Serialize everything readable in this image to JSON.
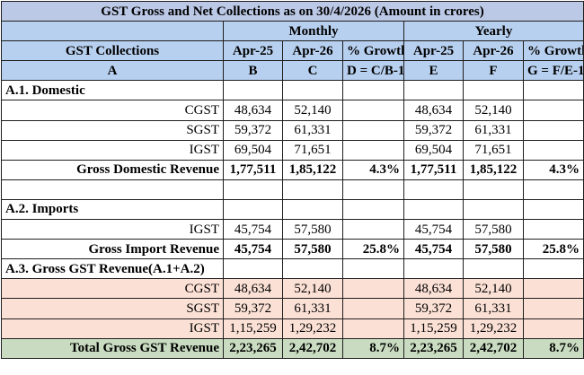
{
  "title": "GST Gross and Net Collections as on  30/4/2026 (Amount in crores)",
  "group_headers": {
    "monthly": "Monthly",
    "yearly": "Yearly"
  },
  "column_headers": {
    "collections": "GST Collections",
    "m_prev": "Apr-25",
    "m_curr": "Apr-26",
    "m_growth": "% Growth",
    "y_prev": "Apr-25",
    "y_curr": "Apr-26",
    "y_growth": "% Growth"
  },
  "column_letters": {
    "a": "A",
    "b": "B",
    "c": "C",
    "d": "D = C/B-1",
    "e": "E",
    "f": "F",
    "g": "G = F/E-1"
  },
  "sections": {
    "domestic": "A.1. Domestic",
    "imports": "A.2. Imports",
    "gross": "A.3. Gross GST Revenue(A.1+A.2)"
  },
  "rows": {
    "d_cgst": {
      "label": "CGST",
      "b": "48,634",
      "c": "52,140",
      "d": "",
      "e": "48,634",
      "f": "52,140",
      "g": ""
    },
    "d_sgst": {
      "label": "SGST",
      "b": "59,372",
      "c": "61,331",
      "d": "",
      "e": "59,372",
      "f": "61,331",
      "g": ""
    },
    "d_igst": {
      "label": "IGST",
      "b": "69,504",
      "c": "71,651",
      "d": "",
      "e": "69,504",
      "f": "71,651",
      "g": ""
    },
    "d_total": {
      "label": "Gross Domestic Revenue",
      "b": "1,77,511",
      "c": "1,85,122",
      "d": "4.3%",
      "e": "1,77,511",
      "f": "1,85,122",
      "g": "4.3%"
    },
    "i_igst": {
      "label": "IGST",
      "b": "45,754",
      "c": "57,580",
      "d": "",
      "e": "45,754",
      "f": "57,580",
      "g": ""
    },
    "i_total": {
      "label": "Gross Import Revenue",
      "b": "45,754",
      "c": "57,580",
      "d": "25.8%",
      "e": "45,754",
      "f": "57,580",
      "g": "25.8%"
    },
    "g_cgst": {
      "label": "CGST",
      "b": "48,634",
      "c": "52,140",
      "d": "",
      "e": "48,634",
      "f": "52,140",
      "g": ""
    },
    "g_sgst": {
      "label": "SGST",
      "b": "59,372",
      "c": "61,331",
      "d": "",
      "e": "59,372",
      "f": "61,331",
      "g": ""
    },
    "g_igst": {
      "label": "IGST",
      "b": "1,15,259",
      "c": "1,29,232",
      "d": "",
      "e": "1,15,259",
      "f": "1,29,232",
      "g": ""
    },
    "g_total": {
      "label": "Total Gross GST Revenue",
      "b": "2,23,265",
      "c": "2,42,702",
      "d": "8.7%",
      "e": "2,23,265",
      "f": "2,42,702",
      "g": "8.7%"
    }
  },
  "colors": {
    "header_blue": "#b8d0ef",
    "title_blue": "#bcc9e6",
    "gross_rows_pink": "#fbe0d5",
    "total_row_green": "#c9dcc1"
  }
}
